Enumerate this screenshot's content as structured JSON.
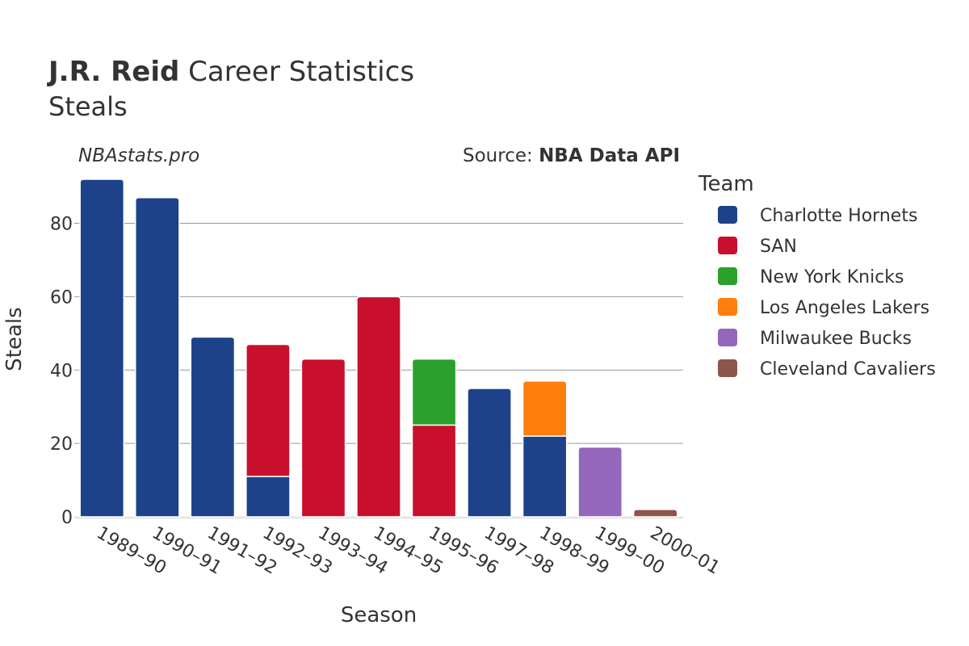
{
  "header": {
    "title_bold": "J.R. Reid",
    "title_rest": " Career Statistics",
    "subtitle": "Steals"
  },
  "watermark": "NBAstats.pro",
  "source": {
    "prefix": "Source: ",
    "name": "NBA Data API"
  },
  "legend": {
    "title": "Team"
  },
  "chart_data": {
    "type": "bar",
    "stacked": true,
    "title": "J.R. Reid Career Statistics",
    "subtitle": "Steals",
    "xlabel": "Season",
    "ylabel": "Steals",
    "ylim": [
      0,
      92
    ],
    "yticks": [
      0,
      20,
      40,
      60,
      80
    ],
    "grid": true,
    "legend_position": "right",
    "categories": [
      "1989–90",
      "1990–91",
      "1991–92",
      "1992–93",
      "1993–94",
      "1994–95",
      "1995–96",
      "1997–98",
      "1998–99",
      "1999–00",
      "2000–01"
    ],
    "series": [
      {
        "name": "Charlotte Hornets",
        "color": "#1d428a",
        "values": [
          92,
          87,
          49,
          11,
          0,
          0,
          0,
          35,
          22,
          0,
          0
        ]
      },
      {
        "name": "SAN",
        "color": "#c8102e",
        "values": [
          0,
          0,
          0,
          36,
          43,
          60,
          25,
          0,
          0,
          0,
          0
        ]
      },
      {
        "name": "New York Knicks",
        "color": "#2ca02c",
        "values": [
          0,
          0,
          0,
          0,
          0,
          0,
          18,
          0,
          0,
          0,
          0
        ]
      },
      {
        "name": "Los Angeles Lakers",
        "color": "#ff7f0e",
        "values": [
          0,
          0,
          0,
          0,
          0,
          0,
          0,
          0,
          15,
          0,
          0
        ]
      },
      {
        "name": "Milwaukee Bucks",
        "color": "#9467bd",
        "values": [
          0,
          0,
          0,
          0,
          0,
          0,
          0,
          0,
          0,
          19,
          0
        ]
      },
      {
        "name": "Cleveland Cavaliers",
        "color": "#8c564b",
        "values": [
          0,
          0,
          0,
          0,
          0,
          0,
          0,
          0,
          0,
          0,
          2
        ]
      }
    ]
  }
}
